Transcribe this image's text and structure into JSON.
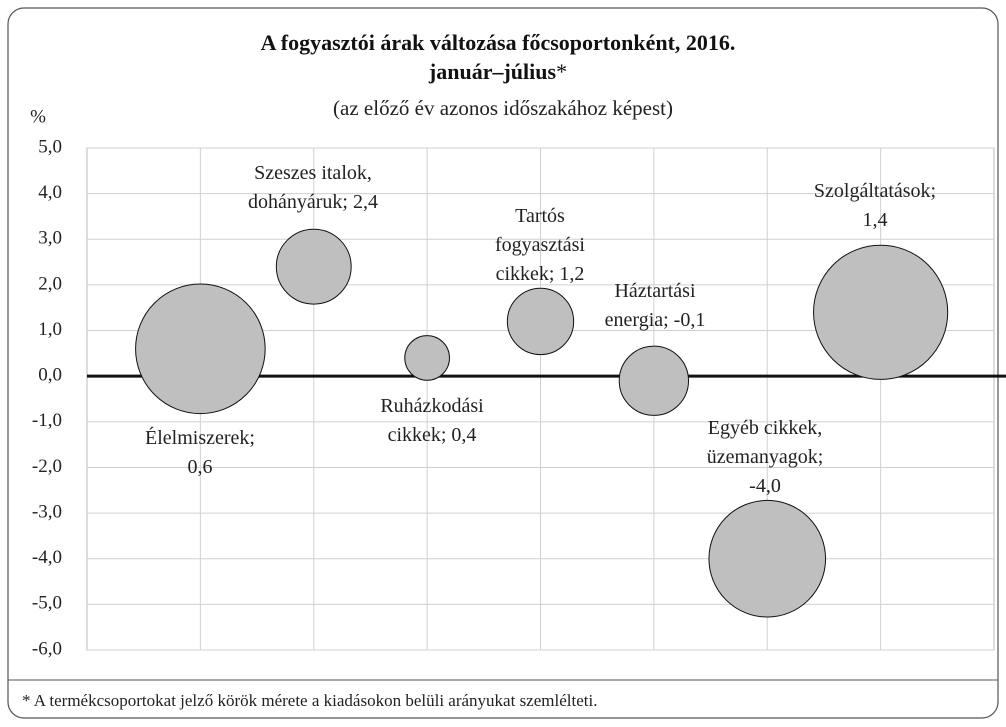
{
  "chart_data": {
    "type": "bubble",
    "title": "A fogyasztói árak változása főcsoportonként, 2016. január–július",
    "title_marker": "*",
    "subtitle": "(az előző év azonos időszakához képest)",
    "ylabel": "%",
    "x": [
      1,
      2,
      3,
      4,
      5,
      6,
      7
    ],
    "values": [
      0.6,
      2.4,
      0.4,
      1.2,
      -0.1,
      -4.0,
      1.4
    ],
    "sizes": [
      42,
      14,
      5,
      11,
      12,
      34,
      45
    ],
    "value_labels": [
      "Élelmiszerek; 0,6",
      "Szeszes italok, dohányáruk; 2,4",
      "Ruházkodási cikkek; 0,4",
      "Tartós fogyasztási cikkek; 1,2",
      "Háztartási energia; -0,1",
      "Egyéb cikkek, üzemanyagok; -4,0",
      "Szolgáltatások; 1,4"
    ],
    "color": "#bfbfbf",
    "xlim": [
      0,
      8
    ],
    "ylim": [
      -6,
      5
    ],
    "yticks": [
      {
        "value": 5,
        "label": "5,0"
      },
      {
        "value": 4,
        "label": "4,0"
      },
      {
        "value": 3,
        "label": "3,0"
      },
      {
        "value": 2,
        "label": "2,0"
      },
      {
        "value": 1,
        "label": "1,0"
      },
      {
        "value": 0,
        "label": "0,0"
      },
      {
        "value": -1,
        "label": "-1,0"
      },
      {
        "value": -2,
        "label": "-2,0"
      },
      {
        "value": -3,
        "label": "-3,0"
      },
      {
        "value": -4,
        "label": "-4,0"
      },
      {
        "value": -5,
        "label": "-5,0"
      },
      {
        "value": -6,
        "label": "-6,0"
      }
    ],
    "grid": true,
    "footnote": "* A termékcsoportokat jelző körök mérete a kiadásokon belüli arányukat szemlélteti."
  }
}
